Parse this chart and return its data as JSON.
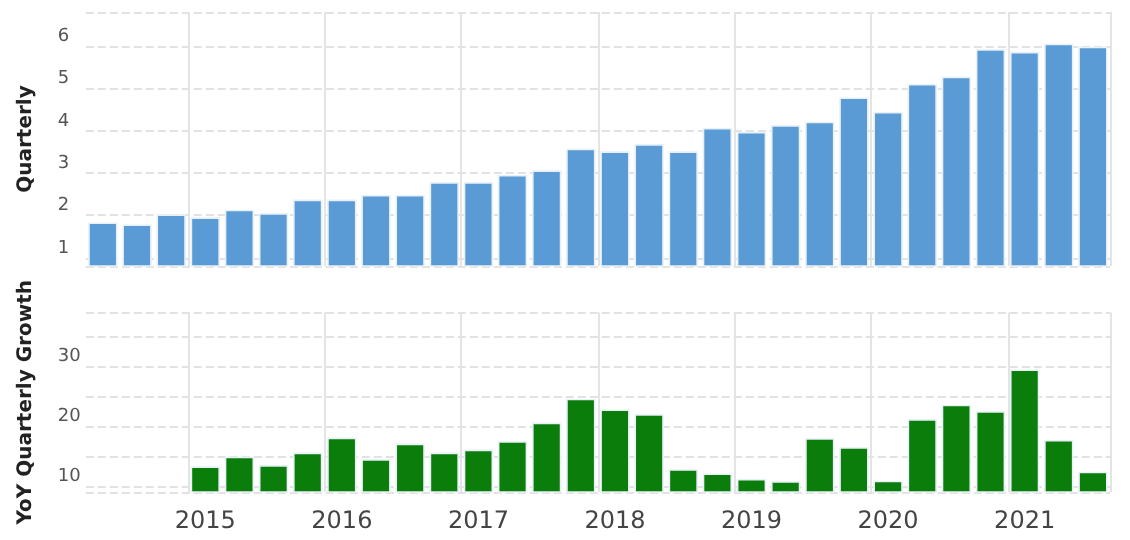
{
  "chart_data": [
    {
      "type": "bar",
      "ylabel": "Quarterly",
      "categories": [
        null,
        null,
        null,
        "2015",
        null,
        null,
        null,
        "2016",
        null,
        null,
        null,
        "2017",
        null,
        null,
        null,
        "2018",
        null,
        null,
        null,
        "2019",
        null,
        null,
        null,
        "2020",
        null,
        null,
        null,
        "2021",
        null,
        null
      ],
      "series": [
        {
          "color": "#5b9bd5",
          "values": [
            1.83,
            1.78,
            2.02,
            1.95,
            2.13,
            2.05,
            2.37,
            2.37,
            2.48,
            2.48,
            2.78,
            2.78,
            2.95,
            3.06,
            3.57,
            3.51,
            3.68,
            3.51,
            4.06,
            3.97,
            4.13,
            4.21,
            4.78,
            4.44,
            5.1,
            5.27,
            5.92,
            5.86,
            6.05,
            5.98
          ]
        }
      ],
      "ylim": [
        0.8,
        6.8
      ],
      "yticks": [
        1,
        2,
        3,
        4,
        5,
        6
      ],
      "grid": true,
      "tick_labels": "y"
    },
    {
      "type": "bar",
      "ylabel": "YoY Quarterly Growth",
      "categories": [
        null,
        null,
        null,
        "2015",
        null,
        null,
        null,
        "2016",
        null,
        null,
        null,
        "2017",
        null,
        null,
        null,
        "2018",
        null,
        null,
        null,
        "2019",
        null,
        null,
        null,
        "2020",
        null,
        null,
        null,
        "2021",
        null,
        null
      ],
      "series": [
        {
          "color": "#0a7d0a",
          "values": [
            null,
            null,
            null,
            13.3,
            14.9,
            13.5,
            15.6,
            18.1,
            14.5,
            17.1,
            15.6,
            16.1,
            17.5,
            20.6,
            24.6,
            22.8,
            22.0,
            12.8,
            12.1,
            11.2,
            10.8,
            18.0,
            16.5,
            10.9,
            21.2,
            23.6,
            22.5,
            29.5,
            17.7,
            12.4
          ]
        }
      ],
      "ylim": [
        9,
        39
      ],
      "yticks": [
        10,
        20,
        30
      ],
      "grid": true
    }
  ]
}
